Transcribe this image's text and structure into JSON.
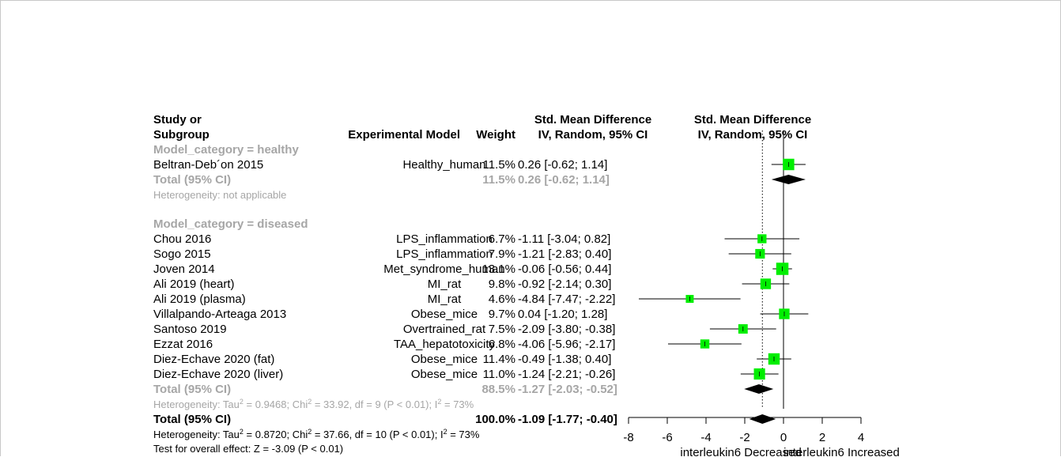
{
  "headers": {
    "study_1": "Study or",
    "study_2": "Subgroup",
    "model": "Experimental Model",
    "weight": "Weight",
    "smd_1": "Std. Mean Difference",
    "smd_2": "IV, Random, 95% CI",
    "plot_1": "Std. Mean Difference",
    "plot_2": "IV, Random, 95% CI"
  },
  "subgroups": [
    {
      "title": "Model_category = healthy",
      "studies": [
        {
          "study": "Beltran-Deb´on 2015",
          "model": "Healthy_human",
          "weight": "11.5%",
          "ci_text": "0.26 [-0.62;  1.14]",
          "smd": 0.26,
          "lower": -0.62,
          "upper": 1.14,
          "weight_pct": 11.5
        }
      ],
      "total": {
        "label": "Total (95% CI)",
        "weight": "11.5%",
        "ci_text": "0.26 [-0.62;  1.14]",
        "smd": 0.26,
        "lower": -0.62,
        "upper": 1.14
      },
      "heterogeneity": "Heterogeneity: not applicable"
    },
    {
      "title": "Model_category = diseased",
      "studies": [
        {
          "study": "Chou 2016",
          "model": "LPS_inflammation",
          "weight": "6.7%",
          "ci_text": "-1.11 [-3.04;  0.82]",
          "smd": -1.11,
          "lower": -3.04,
          "upper": 0.82,
          "weight_pct": 6.7
        },
        {
          "study": "Sogo 2015",
          "model": "LPS_inflammation",
          "weight": "7.9%",
          "ci_text": "-1.21 [-2.83;  0.40]",
          "smd": -1.21,
          "lower": -2.83,
          "upper": 0.4,
          "weight_pct": 7.9
        },
        {
          "study": "Joven 2014",
          "model": "Met_syndrome_human",
          "weight": "13.1%",
          "ci_text": "-0.06 [-0.56;  0.44]",
          "smd": -0.06,
          "lower": -0.56,
          "upper": 0.44,
          "weight_pct": 13.1
        },
        {
          "study": "Ali 2019 (heart)",
          "model": "MI_rat",
          "weight": "9.8%",
          "ci_text": "-0.92 [-2.14;  0.30]",
          "smd": -0.92,
          "lower": -2.14,
          "upper": 0.3,
          "weight_pct": 9.8
        },
        {
          "study": "Ali 2019 (plasma)",
          "model": "MI_rat",
          "weight": "4.6%",
          "ci_text": "-4.84 [-7.47; -2.22]",
          "smd": -4.84,
          "lower": -7.47,
          "upper": -2.22,
          "weight_pct": 4.6
        },
        {
          "study": "Villalpando-Arteaga 2013",
          "model": "Obese_mice",
          "weight": "9.7%",
          "ci_text": "0.04 [-1.20;  1.28]",
          "smd": 0.04,
          "lower": -1.2,
          "upper": 1.28,
          "weight_pct": 9.7
        },
        {
          "study": "Santoso 2019",
          "model": "Overtrained_rat",
          "weight": "7.5%",
          "ci_text": "-2.09 [-3.80; -0.38]",
          "smd": -2.09,
          "lower": -3.8,
          "upper": -0.38,
          "weight_pct": 7.5
        },
        {
          "study": "Ezzat 2016",
          "model": "TAA_hepatotoxicity",
          "weight": "6.8%",
          "ci_text": "-4.06 [-5.96; -2.17]",
          "smd": -4.06,
          "lower": -5.96,
          "upper": -2.17,
          "weight_pct": 6.8
        },
        {
          "study": "Diez-Echave 2020  (fat)",
          "model": "Obese_mice",
          "weight": "11.4%",
          "ci_text": "-0.49 [-1.38;  0.40]",
          "smd": -0.49,
          "lower": -1.38,
          "upper": 0.4,
          "weight_pct": 11.4
        },
        {
          "study": "Diez-Echave 2020 (liver)",
          "model": "Obese_mice",
          "weight": "11.0%",
          "ci_text": "-1.24 [-2.21; -0.26]",
          "smd": -1.24,
          "lower": -2.21,
          "upper": -0.26,
          "weight_pct": 11.0
        }
      ],
      "total": {
        "label": "Total (95% CI)",
        "weight": "88.5%",
        "ci_text": "-1.27 [-2.03; -0.52]",
        "smd": -1.27,
        "lower": -2.03,
        "upper": -0.52
      },
      "heterogeneity": {
        "prefix": "Heterogeneity: Tau",
        "a": " = 0.9468; Chi",
        "b": " = 33.92, df = 9 (P < 0.01); I",
        "c": " = 73%",
        "sup": "2"
      }
    }
  ],
  "overall": {
    "label": "Total (95% CI)",
    "weight": "100.0%",
    "ci_text": "-1.09 [-1.77; -0.40]",
    "smd": -1.09,
    "lower": -1.77,
    "upper": -0.4,
    "heterogeneity": {
      "prefix": "Heterogeneity: Tau",
      "a": " = 0.8720; Chi",
      "b": " = 37.66, df = 10 (P < 0.01); I",
      "c": " = 73%",
      "sup": "2"
    },
    "test": "Test for overall effect: Z = -3.09 (P < 0.01)"
  },
  "axis": {
    "ticks": [
      -8,
      -6,
      -4,
      -2,
      0,
      2,
      4
    ],
    "tick_labels": [
      "-8",
      "-6",
      "-4",
      "-2",
      "0",
      "2",
      "4"
    ],
    "left_label": "interleukin6 Decreased",
    "right_label": "interleukin6 Increased"
  },
  "colors": {
    "square": "#00ee00",
    "diamond": "#000000",
    "subgroup_text": "#a6a6a6",
    "text": "#000000"
  },
  "chart_data": {
    "type": "forest",
    "title": "",
    "xlabel_left": "interleukin6 Decreased",
    "xlabel_right": "interleukin6 Increased",
    "xlim": [
      -8,
      4
    ],
    "reference_line": 0,
    "overall_line": -1.09,
    "studies": [
      {
        "name": "Beltran-Deb´on 2015",
        "subgroup": "healthy",
        "smd": 0.26,
        "lower": -0.62,
        "upper": 1.14,
        "weight": 11.5
      },
      {
        "name": "Chou 2016",
        "subgroup": "diseased",
        "smd": -1.11,
        "lower": -3.04,
        "upper": 0.82,
        "weight": 6.7
      },
      {
        "name": "Sogo 2015",
        "subgroup": "diseased",
        "smd": -1.21,
        "lower": -2.83,
        "upper": 0.4,
        "weight": 7.9
      },
      {
        "name": "Joven 2014",
        "subgroup": "diseased",
        "smd": -0.06,
        "lower": -0.56,
        "upper": 0.44,
        "weight": 13.1
      },
      {
        "name": "Ali 2019 (heart)",
        "subgroup": "diseased",
        "smd": -0.92,
        "lower": -2.14,
        "upper": 0.3,
        "weight": 9.8
      },
      {
        "name": "Ali 2019 (plasma)",
        "subgroup": "diseased",
        "smd": -4.84,
        "lower": -7.47,
        "upper": -2.22,
        "weight": 4.6
      },
      {
        "name": "Villalpando-Arteaga 2013",
        "subgroup": "diseased",
        "smd": 0.04,
        "lower": -1.2,
        "upper": 1.28,
        "weight": 9.7
      },
      {
        "name": "Santoso 2019",
        "subgroup": "diseased",
        "smd": -2.09,
        "lower": -3.8,
        "upper": -0.38,
        "weight": 7.5
      },
      {
        "name": "Ezzat 2016",
        "subgroup": "diseased",
        "smd": -4.06,
        "lower": -5.96,
        "upper": -2.17,
        "weight": 6.8
      },
      {
        "name": "Diez-Echave 2020  (fat)",
        "subgroup": "diseased",
        "smd": -0.49,
        "lower": -1.38,
        "upper": 0.4,
        "weight": 11.4
      },
      {
        "name": "Diez-Echave 2020 (liver)",
        "subgroup": "diseased",
        "smd": -1.24,
        "lower": -2.21,
        "upper": -0.26,
        "weight": 11.0
      }
    ],
    "subgroup_totals": [
      {
        "subgroup": "healthy",
        "smd": 0.26,
        "lower": -0.62,
        "upper": 1.14
      },
      {
        "subgroup": "diseased",
        "smd": -1.27,
        "lower": -2.03,
        "upper": -0.52
      }
    ],
    "overall": {
      "smd": -1.09,
      "lower": -1.77,
      "upper": -0.4
    }
  }
}
